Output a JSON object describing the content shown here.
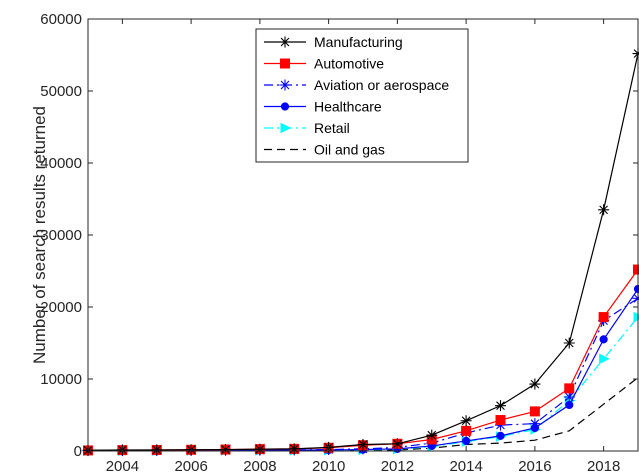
{
  "chart_data": {
    "type": "line",
    "title": "",
    "xlabel": "",
    "ylabel": "Number of search results returned",
    "xlim": [
      2003,
      2019
    ],
    "ylim": [
      0,
      60000
    ],
    "x_ticks": [
      2004,
      2006,
      2008,
      2010,
      2012,
      2014,
      2016,
      2018
    ],
    "y_ticks": [
      0,
      10000,
      20000,
      30000,
      40000,
      50000,
      60000
    ],
    "x_tick_labels": [
      "2004",
      "2006",
      "2008",
      "2010",
      "2012",
      "2014",
      "2016",
      "2018"
    ],
    "y_tick_labels": [
      "0",
      "10000",
      "20000",
      "30000",
      "40000",
      "50000",
      "60000"
    ],
    "grid": false,
    "legend_position": "top-center",
    "x": [
      2003,
      2004,
      2005,
      2006,
      2007,
      2008,
      2009,
      2010,
      2011,
      2012,
      2013,
      2014,
      2015,
      2016,
      2017,
      2018,
      2019
    ],
    "series": [
      {
        "name": "Manufacturing",
        "color": "#000000",
        "dash": "solid",
        "marker": "asterisk",
        "values": [
          100,
          150,
          150,
          180,
          200,
          250,
          300,
          500,
          900,
          1000,
          2200,
          4200,
          6300,
          9300,
          15000,
          33500,
          55200
        ]
      },
      {
        "name": "Automotive",
        "color": "#ff0000",
        "dash": "solid",
        "marker": "square",
        "values": [
          80,
          120,
          140,
          170,
          200,
          260,
          300,
          450,
          800,
          1000,
          1600,
          2800,
          4300,
          5500,
          8700,
          18600,
          25200
        ]
      },
      {
        "name": "Aviation or aerospace",
        "color": "#0000ff",
        "dash": "dashdot",
        "marker": "asterisk",
        "values": [
          50,
          60,
          70,
          80,
          100,
          120,
          150,
          200,
          300,
          500,
          1100,
          2500,
          3600,
          3800,
          7500,
          18100,
          21200
        ]
      },
      {
        "name": "Healthcare",
        "color": "#0000ff",
        "dash": "solid",
        "marker": "circle",
        "values": [
          40,
          50,
          60,
          70,
          80,
          100,
          120,
          150,
          200,
          300,
          700,
          1400,
          2100,
          3200,
          6400,
          15500,
          22500
        ]
      },
      {
        "name": "Retail",
        "color": "#00ffff",
        "dash": "dashdot",
        "marker": "triangle-right",
        "values": [
          30,
          40,
          50,
          60,
          70,
          80,
          100,
          120,
          150,
          250,
          600,
          1300,
          2000,
          3000,
          7000,
          12800,
          18600
        ]
      },
      {
        "name": "Oil and gas",
        "color": "#000000",
        "dash": "dashed",
        "marker": "none",
        "values": [
          20,
          25,
          30,
          35,
          40,
          50,
          60,
          80,
          100,
          150,
          400,
          900,
          1100,
          1500,
          2800,
          6500,
          10200
        ]
      }
    ]
  }
}
